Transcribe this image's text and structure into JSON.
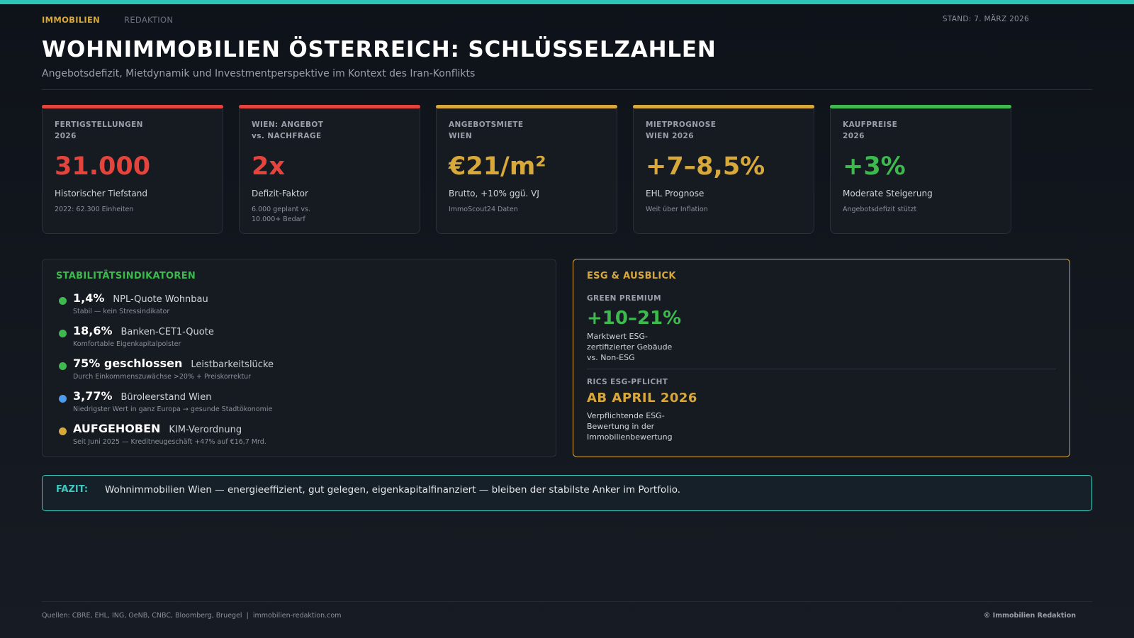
{
  "nav": {
    "primary": "IMMOBILIEN",
    "secondary": "REDAKTION",
    "stand": "STAND: 7. MÄRZ 2026"
  },
  "header": {
    "title": "WOHNIMMOBILIEN ÖSTERREICH: SCHLÜSSELZAHLEN",
    "subtitle": "Angebotsdefizit, Mietdynamik und Investmentperspektive im Kontext des Iran-Konflikts"
  },
  "colors": {
    "accent": "#2ec4b6",
    "red": "#e5443d",
    "gold": "#d9a83a",
    "green": "#3dba4e",
    "blue": "#4d9bf0"
  },
  "cards": [
    {
      "label": "FERTIGSTELLUNGEN\n2026",
      "value": "31.000",
      "desc": "Historischer Tiefstand",
      "note": "2022: 62.300 Einheiten",
      "color": "#e5443d"
    },
    {
      "label": "WIEN: ANGEBOT\nvs. NACHFRAGE",
      "value": "2x",
      "desc": "Defizit-Faktor",
      "note": "6.000 geplant vs.\n10.000+ Bedarf",
      "color": "#e5443d"
    },
    {
      "label": "ANGEBOTSMIETE\nWIEN",
      "value": "€21/m²",
      "desc": "Brutto, +10% ggü. VJ",
      "note": "ImmoScout24 Daten",
      "color": "#d9a83a"
    },
    {
      "label": "MIETPROGNOSE\nWIEN 2026",
      "value": "+7–8,5%",
      "desc": "EHL Prognose",
      "note": "Weit über Inflation",
      "color": "#d9a83a"
    },
    {
      "label": "KAUFPREISE\n2026",
      "value": "+3%",
      "desc": "Moderate Steigerung",
      "note": "Angebotsdefizit stützt",
      "color": "#3dba4e"
    }
  ],
  "stability": {
    "title": "STABILITÄTSINDIKATOREN",
    "items": [
      {
        "value": "1,4%",
        "label": "NPL-Quote Wohnbau",
        "note": "Stabil — kein Stressindikator",
        "status": "green"
      },
      {
        "value": "18,6%",
        "label": "Banken-CET1-Quote",
        "note": "Komfortable Eigenkapitalpolster",
        "status": "green"
      },
      {
        "value": "75% geschlossen",
        "label": "Leistbarkeitslücke",
        "note": "Durch Einkommenszuwächse >20% + Preiskorrektur",
        "status": "green"
      },
      {
        "value": "3,77%",
        "label": "Büroleerstand Wien",
        "note": "Niedrigster Wert in ganz Europa → gesunde Stadtökonomie",
        "status": "blue"
      },
      {
        "value": "AUFGEHOBEN",
        "label": "KIM-Verordnung",
        "note": "Seit Juni 2025 — Kreditneugeschäft +47% auf €16,7 Mrd.",
        "status": "gold"
      }
    ]
  },
  "esg": {
    "title": "ESG & AUSBLICK",
    "green_label": "GREEN PREMIUM",
    "green_value": "+10–21%",
    "green_desc": "Marktwert ESG-\nzertifizierter Gebäude\nvs. Non-ESG",
    "rics_label": "RICS ESG-PFLICHT",
    "rics_value": "AB APRIL 2026",
    "rics_desc": "Verpflichtende ESG-\nBewertung in der\nImmobilienbewertung"
  },
  "fazit": {
    "key": "FAZIT:",
    "text": "Wohnimmobilien Wien — energieeffizient, gut gelegen, eigenkapitalfinanziert — bleiben der stabilste Anker im Portfolio."
  },
  "footer": {
    "sources": "Quellen: CBRE, EHL, ING, OeNB, CNBC, Bloomberg, Bruegel  |  immobilien-redaktion.com",
    "copyright": "© Immobilien Redaktion"
  }
}
